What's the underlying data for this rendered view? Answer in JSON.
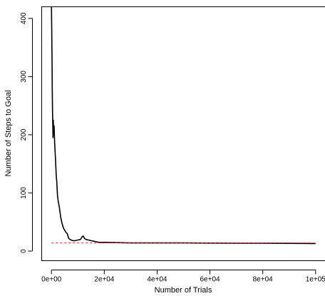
{
  "chart_data": {
    "type": "line",
    "title": "",
    "xlabel": "Number of Trials",
    "ylabel": "Number of Steps to Goal",
    "xlim": [
      -3700,
      103700
    ],
    "ylim": [
      -16.5,
      420
    ],
    "x_ticks": [
      0,
      20000,
      40000,
      60000,
      80000,
      100000
    ],
    "x_tick_labels": [
      "0e+00",
      "2e+04",
      "4e+04",
      "6e+04",
      "8e+04",
      "1e+05"
    ],
    "y_ticks": [
      0,
      100,
      200,
      300,
      400
    ],
    "y_tick_labels": [
      "0",
      "100",
      "200",
      "300",
      "400"
    ],
    "grid": false,
    "legend": "none",
    "series": [
      {
        "color": "#000000",
        "style": "solid",
        "x": [
          0,
          100,
          200,
          300,
          400,
          500,
          600,
          700,
          800,
          1000,
          1200,
          1500,
          1800,
          2000,
          2300,
          2600,
          3000,
          3500,
          4000,
          4500,
          5000,
          5500,
          6000,
          6500,
          7000,
          8000,
          9000,
          10000,
          11000,
          11500,
          12000,
          12500,
          13000,
          14000,
          15000,
          16000,
          17000,
          18000,
          20000,
          25000,
          30000,
          40000,
          50000,
          60000,
          70000,
          80000,
          90000,
          100000
        ],
        "y": [
          420,
          380,
          330,
          280,
          240,
          215,
          195,
          225,
          200,
          215,
          185,
          160,
          130,
          120,
          95,
          85,
          75,
          58,
          48,
          40,
          36,
          32,
          30,
          22,
          20,
          18,
          18,
          19,
          20,
          24,
          26,
          22,
          20,
          19,
          18,
          17,
          16,
          15,
          15,
          14.5,
          14,
          14,
          14,
          13.8,
          13.6,
          13.5,
          13.3,
          13
        ]
      },
      {
        "color": "#e0201a",
        "style": "dashed",
        "x": [
          0,
          100000
        ],
        "y": [
          14,
          14
        ]
      }
    ]
  }
}
